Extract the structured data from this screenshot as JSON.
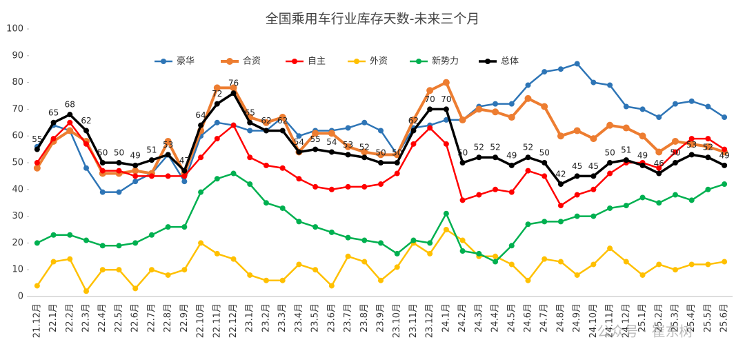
{
  "chart_data": {
    "type": "line",
    "title": "全国乘用车行业库存天数-未来三个月",
    "categories": [
      "21.12月",
      "22.1月",
      "22.2月",
      "22.3月",
      "22.4月",
      "22.5月",
      "22.6月",
      "22.7月",
      "22.8月",
      "22.9月",
      "22.10月",
      "22.11月",
      "22.12月",
      "23.1月",
      "23.2月",
      "23.3月",
      "23.4月",
      "23.5月",
      "23.6月",
      "23.7月",
      "23.8月",
      "23.9月",
      "23.10月",
      "23.11月",
      "23.12月",
      "24.1月",
      "24.2月",
      "24.3月",
      "24.4月",
      "24.5月",
      "24.6月",
      "24.7月",
      "24.8月",
      "24.9月",
      "24.10月",
      "24.11月",
      "24.12月",
      "25.1月",
      "25.2月",
      "25.3月",
      "25.4月",
      "25.5月",
      "25.6月"
    ],
    "series": [
      {
        "name": "豪华",
        "color": "#2e75b6",
        "values": [
          56,
          64,
          62,
          48,
          39,
          39,
          43,
          46,
          53,
          43,
          60,
          65,
          64,
          62,
          62,
          67,
          60,
          62,
          62,
          63,
          65,
          62,
          53,
          63,
          64,
          66,
          66,
          71,
          72,
          72,
          79,
          84,
          85,
          87,
          80,
          79,
          71,
          70,
          67,
          72,
          73,
          71,
          67
        ]
      },
      {
        "name": "合资",
        "color": "#ed7d31",
        "values": [
          48,
          58,
          62,
          58,
          46,
          46,
          47,
          46,
          58,
          46,
          62,
          78,
          78,
          67,
          65,
          67,
          54,
          61,
          61,
          56,
          54,
          53,
          53,
          66,
          77,
          80,
          66,
          70,
          69,
          67,
          74,
          71,
          60,
          62,
          59,
          64,
          63,
          60,
          54,
          58,
          57,
          56,
          54
        ]
      },
      {
        "name": "自主",
        "color": "#ff0000",
        "values": [
          50,
          59,
          65,
          57,
          47,
          47,
          45,
          45,
          45,
          45,
          52,
          59,
          64,
          52,
          49,
          48,
          44,
          41,
          40,
          41,
          41,
          42,
          46,
          57,
          63,
          57,
          36,
          38,
          40,
          39,
          47,
          45,
          34,
          38,
          40,
          46,
          50,
          50,
          48,
          54,
          59,
          59,
          55
        ]
      },
      {
        "name": "外资",
        "color": "#ffc000",
        "values": [
          4,
          13,
          14,
          2,
          10,
          10,
          3,
          10,
          8,
          10,
          20,
          16,
          14,
          8,
          6,
          6,
          12,
          10,
          4,
          15,
          13,
          6,
          11,
          20,
          16,
          25,
          21,
          15,
          15,
          12,
          6,
          14,
          13,
          8,
          12,
          18,
          13,
          8,
          12,
          10,
          12,
          12,
          13
        ]
      },
      {
        "name": "新势力",
        "color": "#00b050",
        "values": [
          20,
          23,
          23,
          21,
          19,
          19,
          20,
          23,
          26,
          26,
          39,
          44,
          46,
          42,
          35,
          33,
          28,
          26,
          24,
          22,
          21,
          20,
          16,
          21,
          20,
          31,
          17,
          16,
          13,
          19,
          27,
          28,
          28,
          30,
          30,
          33,
          34,
          37,
          35,
          38,
          36,
          40,
          42
        ]
      },
      {
        "name": "总体",
        "color": "#000000",
        "show_values": true,
        "values": [
          55,
          65,
          68,
          62,
          50,
          50,
          49,
          51,
          53,
          47,
          64,
          72,
          76,
          65,
          62,
          62,
          54,
          55,
          54,
          53,
          52,
          50,
          50,
          62,
          70,
          70,
          50,
          52,
          52,
          49,
          52,
          50,
          42,
          45,
          45,
          50,
          51,
          49,
          46,
          50,
          53,
          52,
          49
        ]
      }
    ],
    "ylim": [
      0,
      100
    ],
    "yticks": [
      0,
      10,
      20,
      30,
      40,
      50,
      60,
      70,
      80,
      90,
      100
    ],
    "grid": false,
    "watermark": "公众号 · 崔东树"
  }
}
